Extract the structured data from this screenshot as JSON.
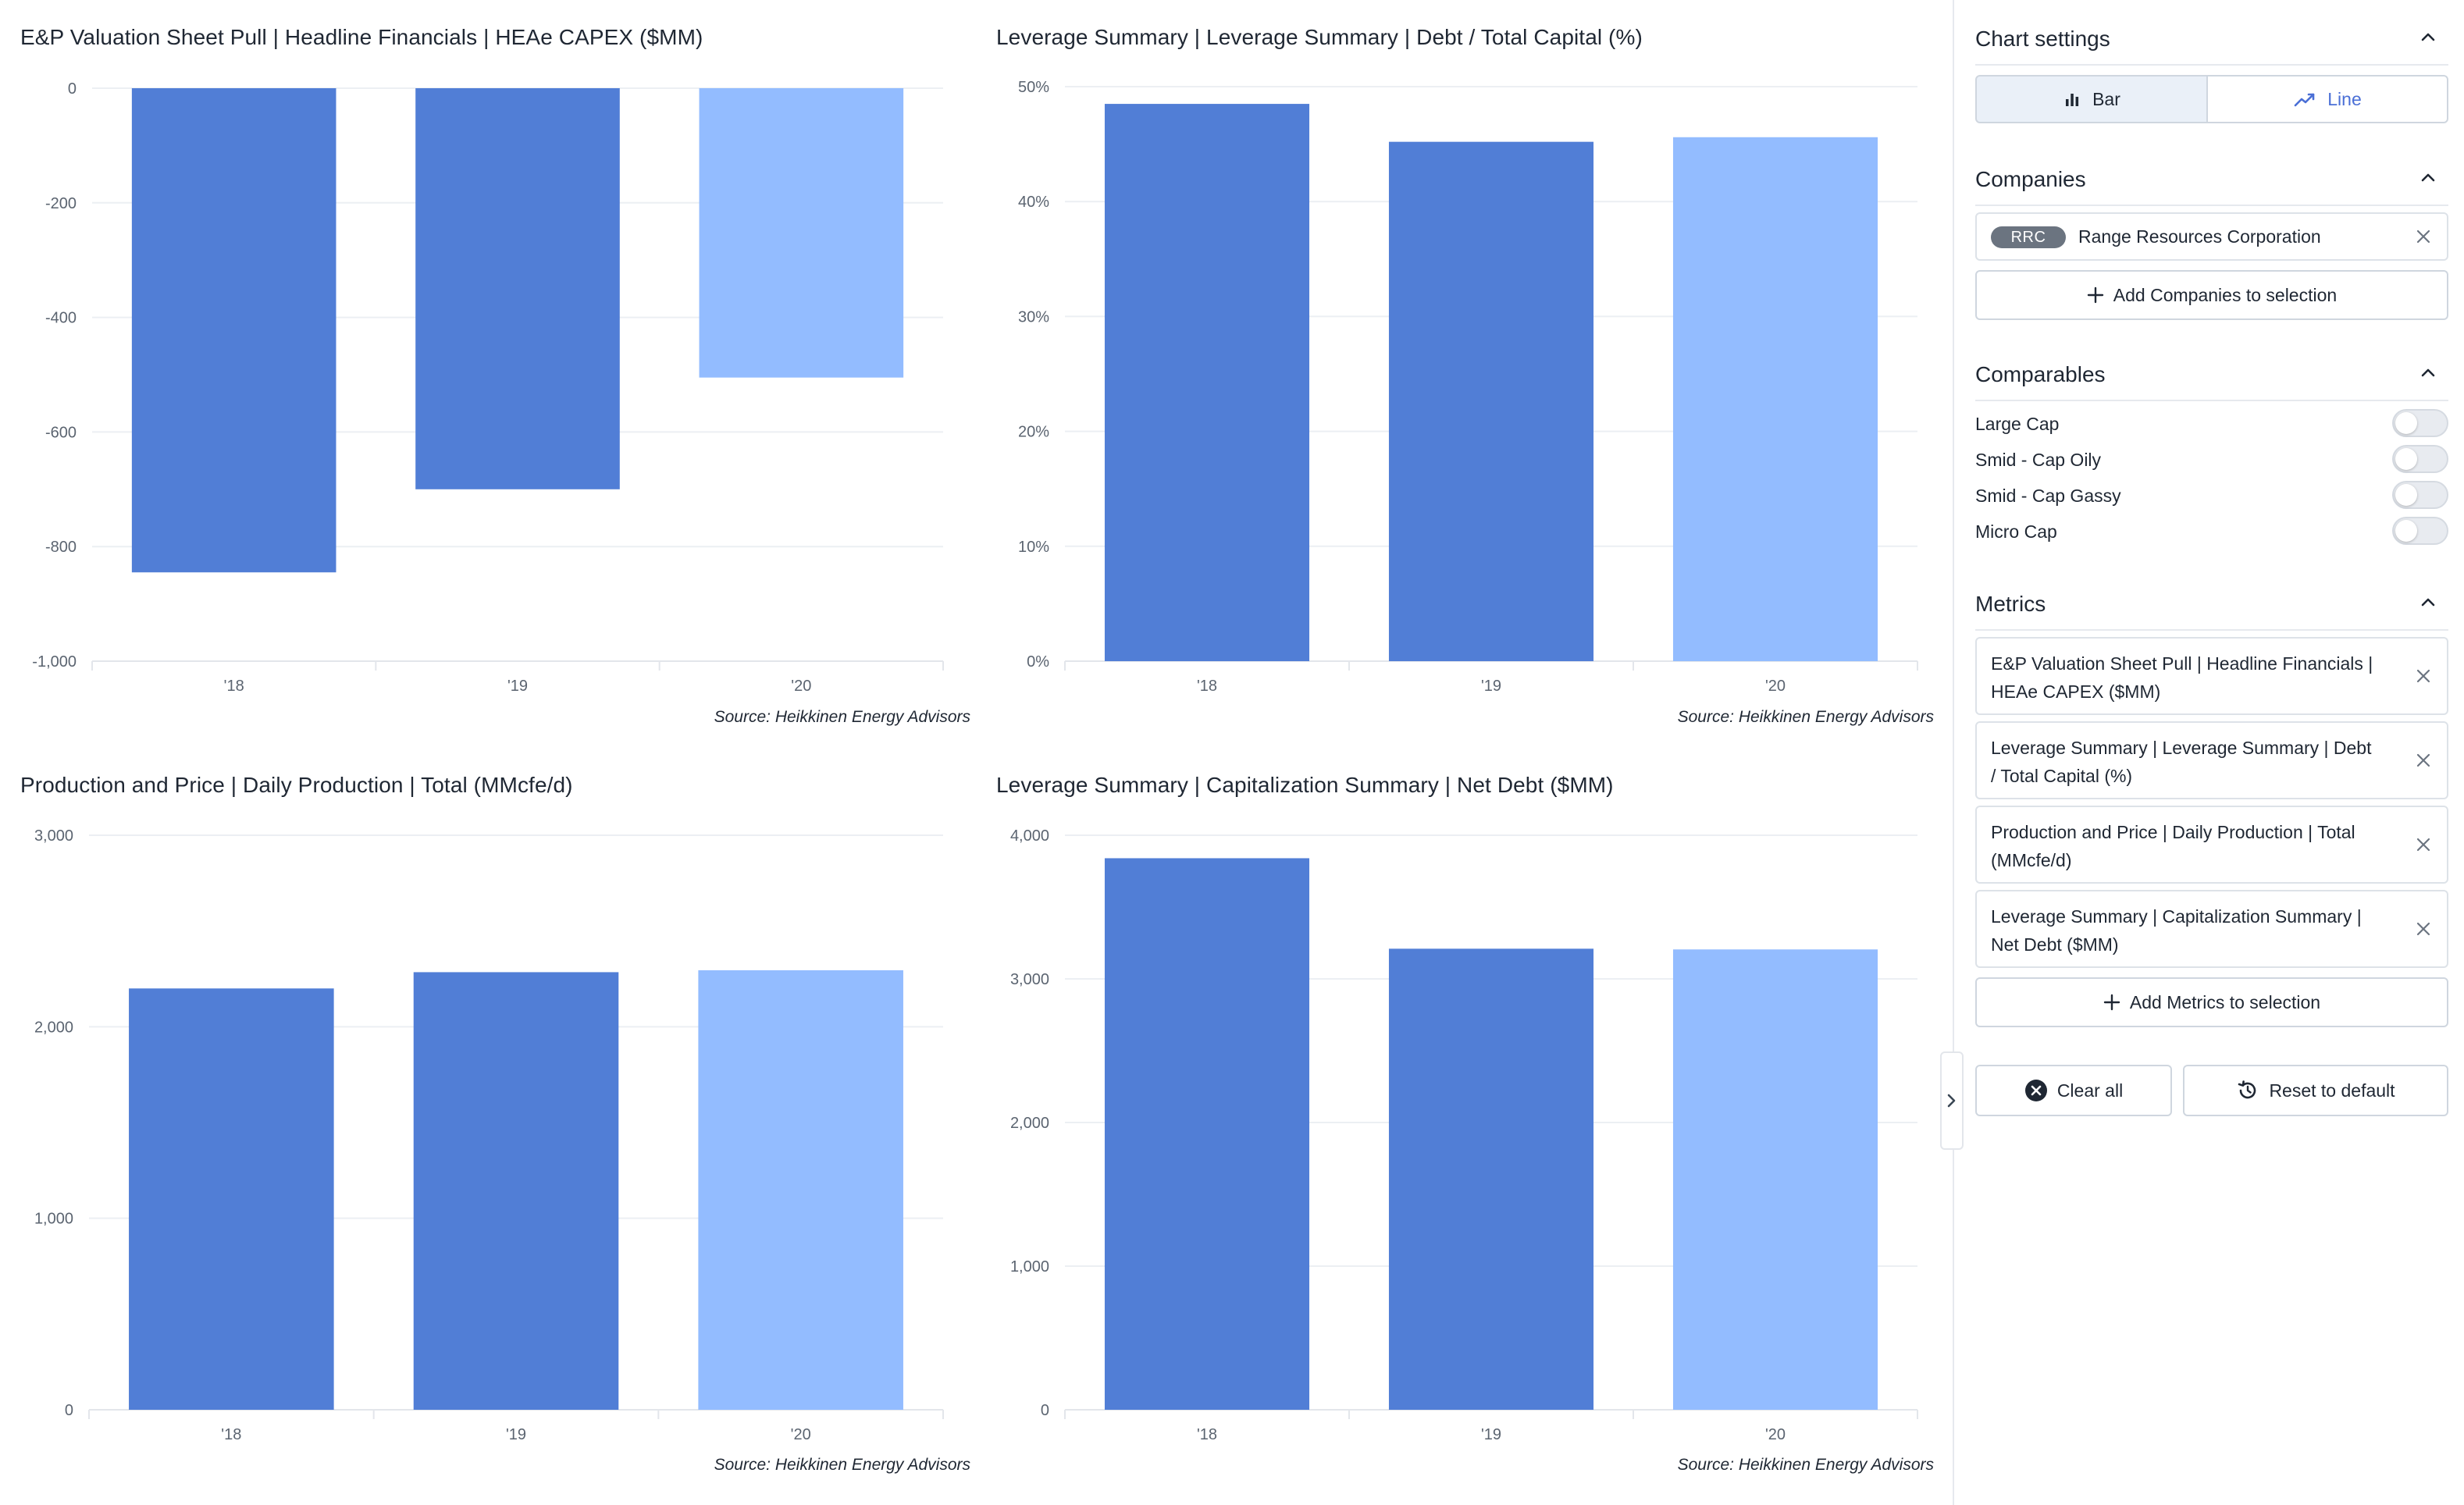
{
  "charts": [
    {
      "title": "E&P Valuation Sheet Pull | Headline Financials | HEAe CAPEX ($MM)",
      "source": "Source: Heikkinen Energy Advisors",
      "chart_data": {
        "type": "bar",
        "categories": [
          "'18",
          "'19",
          "'20"
        ],
        "values": [
          -845,
          -700,
          -505
        ],
        "ylim": [
          -1000,
          0
        ],
        "yticks": [
          0,
          -200,
          -400,
          -600,
          -800,
          -1000
        ],
        "ytick_labels": [
          "0",
          "-200",
          "-400",
          "-600",
          "-800",
          "-1,000"
        ],
        "bar_colors": [
          "#517ed6",
          "#517ed6",
          "#93bcff"
        ],
        "grid": true
      }
    },
    {
      "title": "Leverage Summary | Leverage Summary | Debt / Total Capital (%)",
      "source": "Source: Heikkinen Energy Advisors",
      "chart_data": {
        "type": "bar",
        "categories": [
          "'18",
          "'19",
          "'20"
        ],
        "values": [
          48.5,
          45.2,
          45.6
        ],
        "ylim": [
          0,
          50
        ],
        "yticks": [
          0,
          10,
          20,
          30,
          40,
          50
        ],
        "ytick_labels": [
          "0%",
          "10%",
          "20%",
          "30%",
          "40%",
          "50%"
        ],
        "bar_colors": [
          "#517ed6",
          "#517ed6",
          "#93bcff"
        ],
        "grid": true
      }
    },
    {
      "title": "Production and Price | Daily Production | Total (MMcfe/d)",
      "source": "Source: Heikkinen Energy Advisors",
      "chart_data": {
        "type": "bar",
        "categories": [
          "'18",
          "'19",
          "'20"
        ],
        "values": [
          2200,
          2285,
          2295
        ],
        "ylim": [
          0,
          3000
        ],
        "yticks": [
          0,
          1000,
          2000,
          3000
        ],
        "ytick_labels": [
          "0",
          "1,000",
          "2,000",
          "3,000"
        ],
        "bar_colors": [
          "#517ed6",
          "#517ed6",
          "#93bcff"
        ],
        "grid": true
      }
    },
    {
      "title": "Leverage Summary | Capitalization Summary | Net Debt ($MM)",
      "source": "Source: Heikkinen Energy Advisors",
      "chart_data": {
        "type": "bar",
        "categories": [
          "'18",
          "'19",
          "'20"
        ],
        "values": [
          3840,
          3210,
          3205
        ],
        "ylim": [
          0,
          4000
        ],
        "yticks": [
          0,
          1000,
          2000,
          3000,
          4000
        ],
        "ytick_labels": [
          "0",
          "1,000",
          "2,000",
          "3,000",
          "4,000"
        ],
        "bar_colors": [
          "#517ed6",
          "#517ed6",
          "#93bcff"
        ],
        "grid": true
      }
    }
  ],
  "sidebar": {
    "chart_settings": {
      "title": "Chart settings",
      "bar_label": "Bar",
      "line_label": "Line",
      "selected": "Bar"
    },
    "companies": {
      "title": "Companies",
      "items": [
        {
          "ticker": "RRC",
          "name": "Range Resources Corporation"
        }
      ],
      "add_label": "Add Companies to selection"
    },
    "comparables": {
      "title": "Comparables",
      "items": [
        {
          "label": "Large Cap",
          "on": false
        },
        {
          "label": "Smid - Cap Oily",
          "on": false
        },
        {
          "label": "Smid - Cap Gassy",
          "on": false
        },
        {
          "label": "Micro Cap",
          "on": false
        }
      ]
    },
    "metrics": {
      "title": "Metrics",
      "items": [
        {
          "label": "E&P Valuation Sheet Pull | Headline Financials | HEAe CAPEX ($MM)"
        },
        {
          "label": "Leverage Summary | Leverage Summary | Debt / Total Capital (%)"
        },
        {
          "label": "Production and Price | Daily Production | Total (MMcfe/d)"
        },
        {
          "label": "Leverage Summary | Capitalization Summary | Net Debt ($MM)"
        }
      ],
      "add_label": "Add Metrics to selection"
    },
    "clear_all_label": "Clear all",
    "reset_label": "Reset to default"
  },
  "colors": {
    "bar_primary": "#517ed6",
    "bar_secondary": "#93bcff",
    "accent": "#4a6fd6"
  }
}
